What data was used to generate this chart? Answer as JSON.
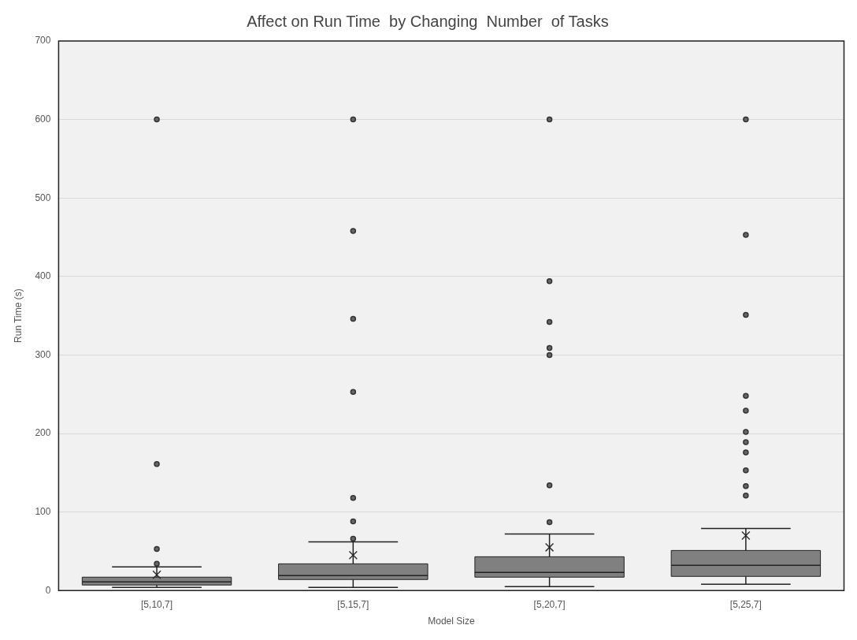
{
  "chart_data": {
    "type": "box",
    "title": "Affect on Run Time  by Changing  Number  of Tasks",
    "xlabel": "Model Size",
    "ylabel": "Run Time (s)",
    "categories": [
      "[5,10,7]",
      "[5,15,7]",
      "[5,20,7]",
      "[5,25,7]"
    ],
    "color": "#808080",
    "ylim": [
      0,
      700
    ],
    "yticks": [
      0,
      100,
      200,
      300,
      400,
      500,
      600,
      700
    ],
    "grid": "y",
    "boxes": [
      {
        "low": 4,
        "q1": 7,
        "median": 11,
        "q3": 17,
        "high": 30,
        "mean": 20,
        "outliers": [
          34,
          53,
          161,
          600
        ]
      },
      {
        "low": 4,
        "q1": 14,
        "median": 19,
        "q3": 34,
        "high": 62,
        "mean": 45,
        "outliers": [
          66,
          88,
          118,
          253,
          346,
          458,
          600
        ]
      },
      {
        "low": 5,
        "q1": 17,
        "median": 23,
        "q3": 43,
        "high": 72,
        "mean": 55,
        "outliers": [
          87,
          134,
          300,
          309,
          342,
          394,
          600
        ]
      },
      {
        "low": 8,
        "q1": 18,
        "median": 32,
        "q3": 51,
        "high": 79,
        "mean": 70,
        "outliers": [
          121,
          133,
          153,
          176,
          189,
          202,
          229,
          248,
          351,
          453,
          600
        ]
      }
    ]
  }
}
